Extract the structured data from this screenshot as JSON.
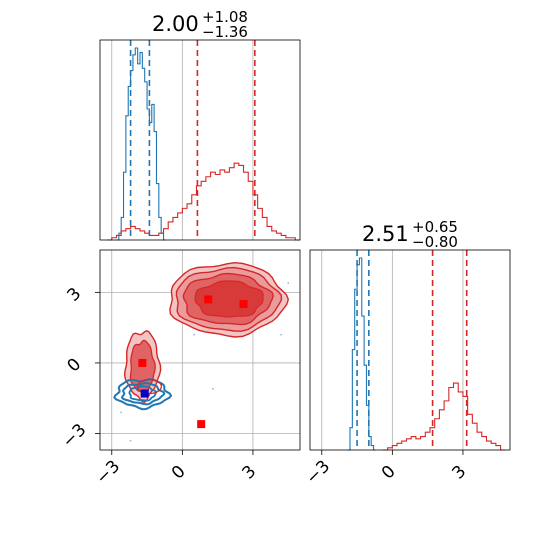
{
  "chart_data": [
    {
      "type": "histogram",
      "title_main": "2.00",
      "title_plus": "+1.08",
      "title_minus": "−1.36",
      "xlim": [
        -3.5,
        5.0
      ],
      "grid": true,
      "series": [
        {
          "color": "#1f77b4",
          "bins_x": [
            -2.8,
            -2.7,
            -2.6,
            -2.5,
            -2.4,
            -2.3,
            -2.2,
            -2.1,
            -2.0,
            -1.9,
            -1.8,
            -1.7,
            -1.6,
            -1.5,
            -1.4,
            -1.3,
            -1.2,
            -1.1,
            -1.0,
            -0.9,
            -0.8
          ],
          "heights": [
            0.0,
            0.03,
            0.1,
            0.3,
            0.55,
            0.68,
            0.75,
            0.82,
            0.85,
            0.78,
            0.83,
            0.76,
            0.7,
            0.58,
            0.52,
            0.6,
            0.48,
            0.25,
            0.1,
            0.03,
            0.0
          ],
          "quantiles": [
            -2.2,
            -1.4
          ]
        },
        {
          "color": "#d62728",
          "bins_x": [
            -3.2,
            -3.0,
            -2.8,
            -2.6,
            -2.4,
            -2.2,
            -2.0,
            -1.8,
            -1.6,
            -1.4,
            -1.2,
            -1.0,
            -0.8,
            -0.6,
            -0.4,
            -0.2,
            0.0,
            0.2,
            0.4,
            0.6,
            0.8,
            1.0,
            1.2,
            1.4,
            1.6,
            1.8,
            2.0,
            2.2,
            2.4,
            2.6,
            2.8,
            3.0,
            3.2,
            3.4,
            3.6,
            3.8,
            4.0,
            4.2,
            4.4,
            4.6,
            4.8
          ],
          "heights": [
            0.0,
            0.01,
            0.02,
            0.04,
            0.05,
            0.06,
            0.05,
            0.04,
            0.03,
            0.02,
            0.02,
            0.03,
            0.05,
            0.08,
            0.1,
            0.12,
            0.14,
            0.16,
            0.2,
            0.24,
            0.26,
            0.28,
            0.3,
            0.29,
            0.31,
            0.3,
            0.32,
            0.34,
            0.33,
            0.3,
            0.26,
            0.2,
            0.14,
            0.1,
            0.06,
            0.04,
            0.03,
            0.02,
            0.01,
            0.01,
            0.0
          ],
          "quantiles": [
            0.64,
            3.08
          ]
        }
      ]
    },
    {
      "type": "histogram",
      "title_main": "2.51",
      "title_plus": "+0.65",
      "title_minus": "−0.80",
      "xlim": [
        -3.5,
        5.0
      ],
      "xticks": [
        -3,
        0,
        3
      ],
      "xtick_labels": [
        "−3",
        "0",
        "3"
      ],
      "grid": true,
      "series": [
        {
          "color": "#1f77b4",
          "bins_x": [
            -1.9,
            -1.8,
            -1.7,
            -1.6,
            -1.5,
            -1.4,
            -1.3,
            -1.2,
            -1.1,
            -1.0,
            -0.9,
            -0.8
          ],
          "heights": [
            0.0,
            0.1,
            0.45,
            0.72,
            0.83,
            0.86,
            0.6,
            0.38,
            0.2,
            0.06,
            0.02,
            0.0
          ],
          "quantiles": [
            -1.5,
            -1.0
          ]
        },
        {
          "color": "#d62728",
          "bins_x": [
            -0.4,
            -0.2,
            0.0,
            0.2,
            0.4,
            0.6,
            0.8,
            1.0,
            1.2,
            1.4,
            1.6,
            1.8,
            2.0,
            2.2,
            2.4,
            2.6,
            2.8,
            3.0,
            3.2,
            3.4,
            3.6,
            3.8,
            4.0,
            4.2,
            4.4,
            4.6
          ],
          "heights": [
            0.0,
            0.01,
            0.02,
            0.03,
            0.04,
            0.05,
            0.06,
            0.05,
            0.06,
            0.08,
            0.1,
            0.14,
            0.18,
            0.22,
            0.28,
            0.3,
            0.26,
            0.24,
            0.16,
            0.12,
            0.08,
            0.06,
            0.04,
            0.03,
            0.02,
            0.0
          ],
          "quantiles": [
            1.71,
            3.16
          ]
        }
      ]
    },
    {
      "type": "contour",
      "xlim": [
        -3.5,
        5.0
      ],
      "ylim": [
        -3.7,
        4.8
      ],
      "xticks": [
        -3,
        0,
        3
      ],
      "xtick_labels": [
        "−3",
        "0",
        "3"
      ],
      "yticks": [
        -3,
        0,
        3
      ],
      "ytick_labels": [
        "−3",
        "0",
        "3"
      ],
      "grid": true,
      "red_points": [
        [
          1.1,
          2.7
        ],
        [
          2.6,
          2.5
        ],
        [
          -1.7,
          0.0
        ],
        [
          0.8,
          -2.6
        ]
      ],
      "blue_points": [
        [
          -1.6,
          -1.3
        ]
      ],
      "red_color": "#d62728",
      "blue_color": "#1f77b4",
      "point_red": "#ff0000",
      "point_blue": "#0000cc"
    }
  ]
}
